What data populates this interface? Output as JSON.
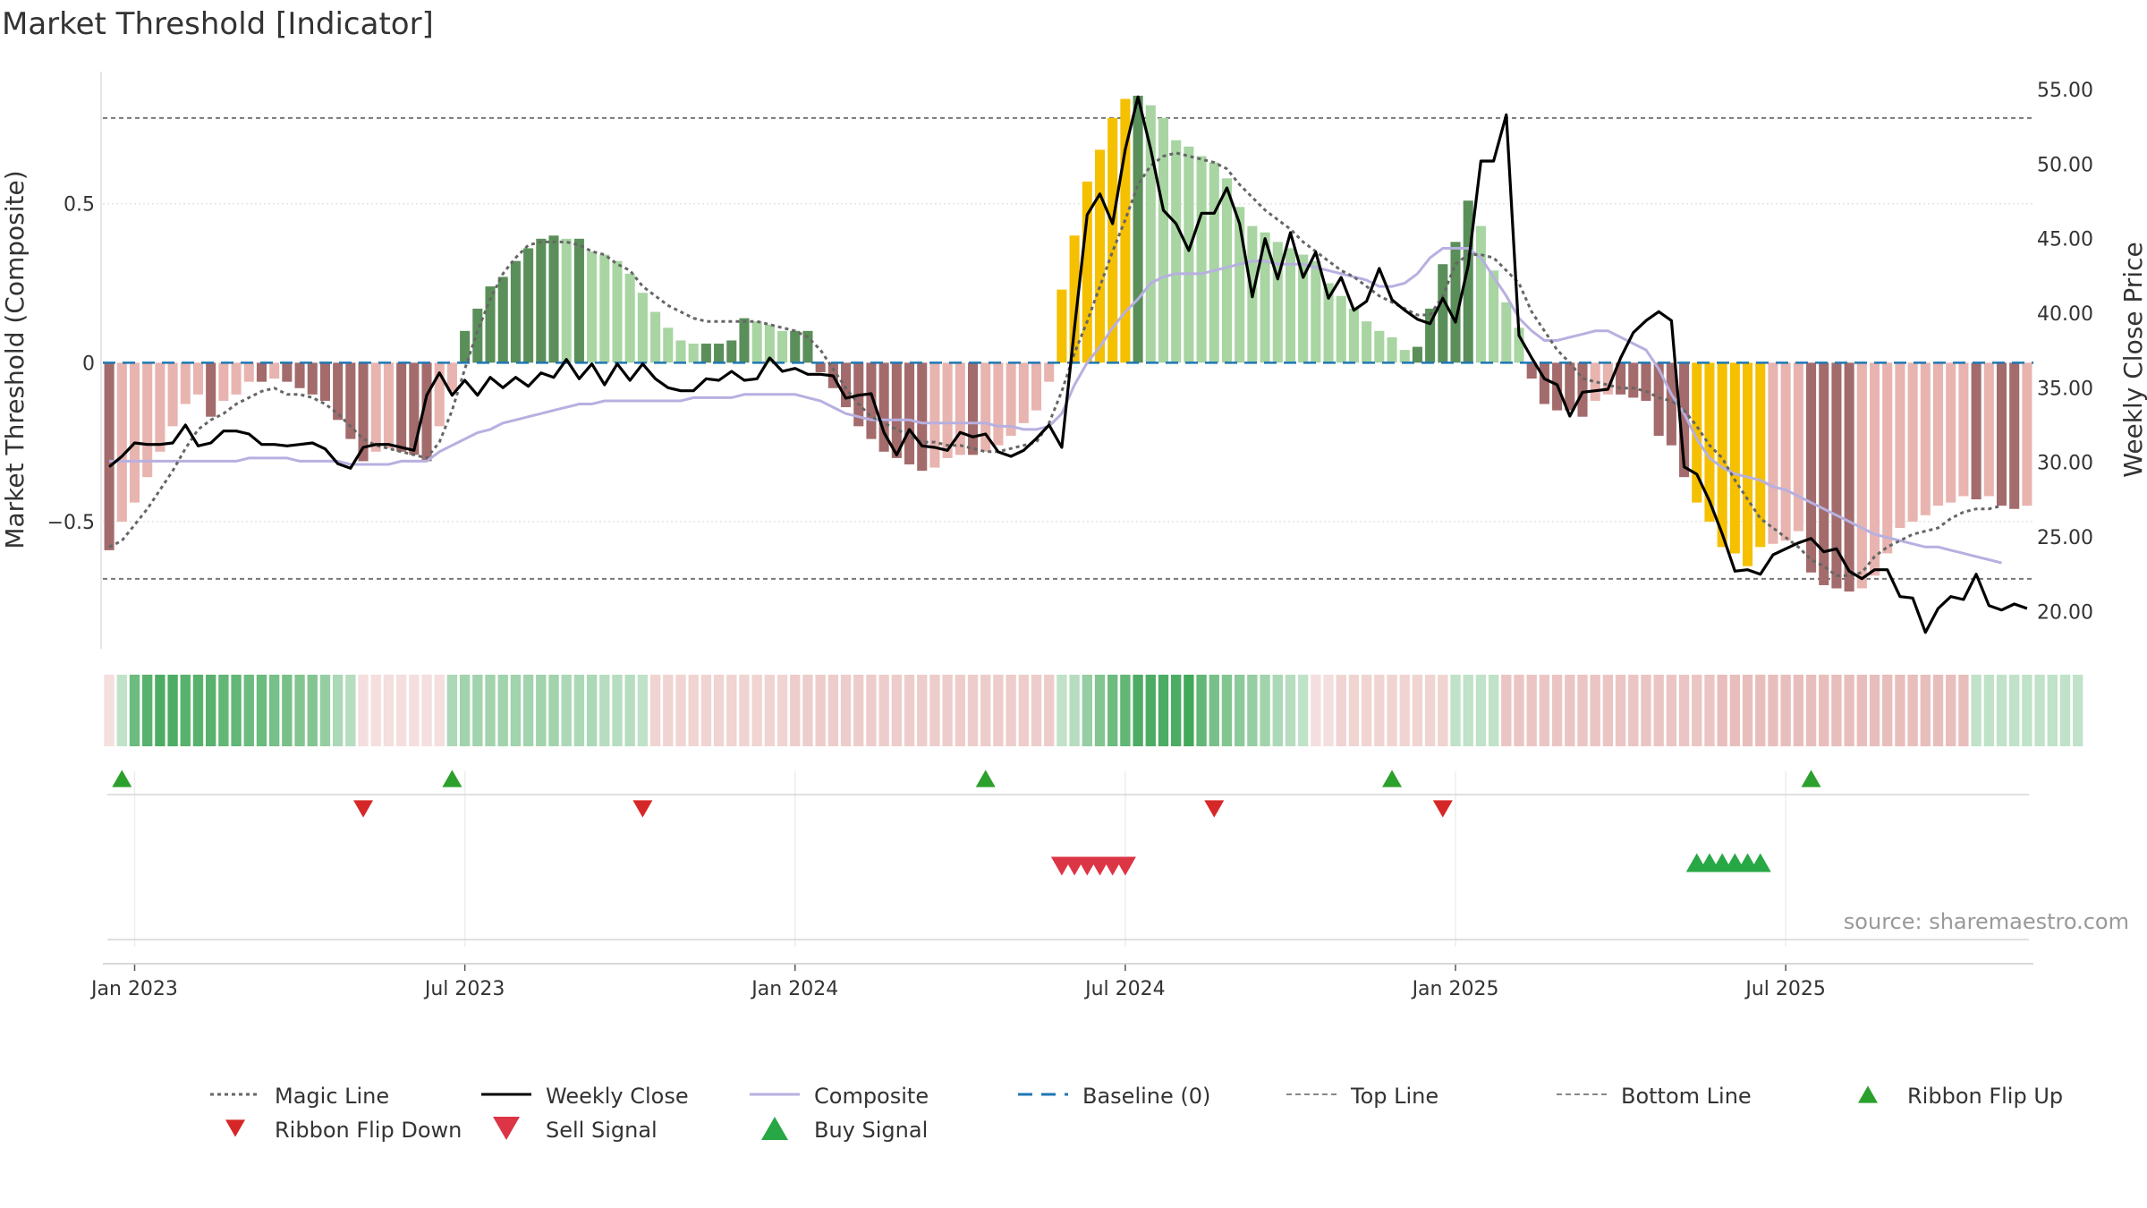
{
  "chart_data": {
    "type": "bar",
    "title": "Market Threshold [Indicator]",
    "ylabel_left": "Market Threshold (Composite)",
    "ylabel_right": "Weekly Close Price",
    "source": "source: sharemaestro.com",
    "left_ticks": [
      {
        "value": 0.5,
        "label": "0.5"
      },
      {
        "value": 0,
        "label": "0"
      },
      {
        "value": -0.5,
        "label": "−0.5"
      }
    ],
    "right_ticks": [
      {
        "value": 55,
        "label": "55.00"
      },
      {
        "value": 50,
        "label": "50.00"
      },
      {
        "value": 45,
        "label": "45.00"
      },
      {
        "value": 40,
        "label": "40.00"
      },
      {
        "value": 35,
        "label": "35.00"
      },
      {
        "value": 30,
        "label": "30.00"
      },
      {
        "value": 25,
        "label": "25.00"
      },
      {
        "value": 20,
        "label": "20.00"
      }
    ],
    "x_ticks": [
      {
        "week": 2,
        "label": "Jan 2023"
      },
      {
        "week": 28,
        "label": "Jul 2023"
      },
      {
        "week": 54,
        "label": "Jan 2024"
      },
      {
        "week": 80,
        "label": "Jul 2024"
      },
      {
        "week": 106,
        "label": "Jan 2025"
      },
      {
        "week": 132,
        "label": "Jul 2025"
      }
    ],
    "ylim_left": [
      -0.9,
      0.93
    ],
    "ylim_right": [
      17.5,
      56.5
    ],
    "top_line": 0.77,
    "bottom_line": -0.68,
    "composite_bars": [
      -0.59,
      -0.5,
      -0.44,
      -0.36,
      -0.28,
      -0.2,
      -0.13,
      -0.1,
      -0.17,
      -0.12,
      -0.1,
      -0.06,
      -0.06,
      -0.05,
      -0.06,
      -0.08,
      -0.1,
      -0.12,
      -0.18,
      -0.24,
      -0.31,
      -0.28,
      -0.27,
      -0.28,
      -0.29,
      -0.31,
      -0.2,
      -0.09,
      0.1,
      0.17,
      0.24,
      0.27,
      0.32,
      0.36,
      0.39,
      0.4,
      0.39,
      0.39,
      0.35,
      0.34,
      0.32,
      0.28,
      0.22,
      0.16,
      0.11,
      0.07,
      0.06,
      0.06,
      0.06,
      0.07,
      0.14,
      0.13,
      0.12,
      0.1,
      0.1,
      0.1,
      -0.03,
      -0.08,
      -0.14,
      -0.2,
      -0.24,
      -0.28,
      -0.3,
      -0.32,
      -0.34,
      -0.33,
      -0.3,
      -0.29,
      -0.29,
      -0.28,
      -0.26,
      -0.23,
      -0.19,
      -0.15,
      -0.06,
      0.23,
      0.4,
      0.57,
      0.67,
      0.77,
      0.83,
      0.84,
      0.81,
      0.77,
      0.7,
      0.68,
      0.65,
      0.63,
      0.58,
      0.49,
      0.43,
      0.41,
      0.38,
      0.36,
      0.34,
      0.32,
      0.25,
      0.21,
      0.17,
      0.13,
      0.1,
      0.08,
      0.04,
      0.05,
      0.17,
      0.31,
      0.38,
      0.51,
      0.43,
      0.29,
      0.19,
      0.11,
      -0.05,
      -0.13,
      -0.15,
      -0.15,
      -0.17,
      -0.12,
      -0.1,
      -0.1,
      -0.11,
      -0.12,
      -0.23,
      -0.26,
      -0.36,
      -0.44,
      -0.5,
      -0.58,
      -0.6,
      -0.64,
      -0.58,
      -0.57,
      -0.56,
      -0.53,
      -0.66,
      -0.7,
      -0.71,
      -0.72,
      -0.71,
      -0.67,
      -0.6,
      -0.52,
      -0.5,
      -0.48,
      -0.45,
      -0.44,
      -0.42,
      -0.43,
      -0.42,
      -0.45,
      -0.46,
      -0.45
    ],
    "weekly_close": [
      29.7,
      30.4,
      31.3,
      31.2,
      31.2,
      31.3,
      32.5,
      31.1,
      31.3,
      32.1,
      32.1,
      31.9,
      31.2,
      31.2,
      31.1,
      31.2,
      31.3,
      30.9,
      29.9,
      29.6,
      31.0,
      31.2,
      31.2,
      31.0,
      30.8,
      34.5,
      36.0,
      34.5,
      35.5,
      34.5,
      35.7,
      35.0,
      35.7,
      35.1,
      36.0,
      35.7,
      36.9,
      35.6,
      36.6,
      35.2,
      36.6,
      35.5,
      36.6,
      35.6,
      35.0,
      34.8,
      34.8,
      35.6,
      35.5,
      36.1,
      35.5,
      35.6,
      37.0,
      36.1,
      36.3,
      35.9,
      35.9,
      35.8,
      34.3,
      34.5,
      34.6,
      32.0,
      30.5,
      32.2,
      31.1,
      31.0,
      30.8,
      32.0,
      31.7,
      31.9,
      30.7,
      30.4,
      30.8,
      31.6,
      32.5,
      31.0,
      39.0,
      46.6,
      48.0,
      46.0,
      51.0,
      54.5,
      51.0,
      46.9,
      46.0,
      44.2,
      46.7,
      46.7,
      48.4,
      46.0,
      41.1,
      45.0,
      42.3,
      45.4,
      42.4,
      44.1,
      41.0,
      42.4,
      40.2,
      40.8,
      43.0,
      40.9,
      40.2,
      39.6,
      39.3,
      41.0,
      39.4,
      43.2,
      50.2,
      50.2,
      53.3,
      38.5,
      37.0,
      35.6,
      35.2,
      33.1,
      34.7,
      34.8,
      34.9,
      37.0,
      38.7,
      39.5,
      40.1,
      39.5,
      29.7,
      29.2,
      27.4,
      25.2,
      22.7,
      22.8,
      22.5,
      23.8,
      24.2,
      24.6,
      24.9,
      24.0,
      24.2,
      22.7,
      22.2,
      22.8,
      22.8,
      21.0,
      20.9,
      18.6,
      20.2,
      21.0,
      20.8,
      22.5,
      20.4,
      20.1,
      20.5,
      20.2
    ],
    "magic_line": [
      -0.58,
      -0.56,
      -0.51,
      -0.46,
      -0.4,
      -0.34,
      -0.27,
      -0.21,
      -0.18,
      -0.16,
      -0.13,
      -0.11,
      -0.09,
      -0.08,
      -0.1,
      -0.1,
      -0.11,
      -0.13,
      -0.16,
      -0.2,
      -0.24,
      -0.26,
      -0.27,
      -0.28,
      -0.29,
      -0.3,
      -0.25,
      -0.15,
      -0.02,
      0.1,
      0.2,
      0.28,
      0.33,
      0.37,
      0.38,
      0.38,
      0.38,
      0.37,
      0.35,
      0.34,
      0.31,
      0.29,
      0.24,
      0.21,
      0.18,
      0.16,
      0.14,
      0.13,
      0.13,
      0.13,
      0.13,
      0.13,
      0.12,
      0.11,
      0.1,
      0.08,
      0.04,
      -0.02,
      -0.08,
      -0.13,
      -0.17,
      -0.19,
      -0.21,
      -0.23,
      -0.25,
      -0.25,
      -0.26,
      -0.26,
      -0.27,
      -0.28,
      -0.28,
      -0.27,
      -0.26,
      -0.25,
      -0.19,
      -0.09,
      0.03,
      0.13,
      0.24,
      0.35,
      0.45,
      0.56,
      0.62,
      0.65,
      0.66,
      0.65,
      0.64,
      0.63,
      0.61,
      0.56,
      0.52,
      0.48,
      0.45,
      0.42,
      0.38,
      0.35,
      0.32,
      0.29,
      0.27,
      0.24,
      0.21,
      0.19,
      0.17,
      0.15,
      0.15,
      0.21,
      0.31,
      0.34,
      0.34,
      0.33,
      0.29,
      0.25,
      0.16,
      0.1,
      0.04,
      0.0,
      -0.05,
      -0.06,
      -0.07,
      -0.08,
      -0.08,
      -0.09,
      -0.11,
      -0.12,
      -0.15,
      -0.2,
      -0.26,
      -0.3,
      -0.37,
      -0.43,
      -0.49,
      -0.52,
      -0.55,
      -0.58,
      -0.62,
      -0.64,
      -0.67,
      -0.67,
      -0.66,
      -0.61,
      -0.58,
      -0.56,
      -0.54,
      -0.53,
      -0.52,
      -0.49,
      -0.47,
      -0.46,
      -0.46,
      -0.45
    ],
    "composite_line": [
      -0.31,
      -0.31,
      -0.31,
      -0.31,
      -0.31,
      -0.31,
      -0.31,
      -0.31,
      -0.31,
      -0.31,
      -0.31,
      -0.3,
      -0.3,
      -0.3,
      -0.3,
      -0.31,
      -0.31,
      -0.31,
      -0.31,
      -0.32,
      -0.32,
      -0.32,
      -0.32,
      -0.31,
      -0.31,
      -0.31,
      -0.28,
      -0.26,
      -0.24,
      -0.22,
      -0.21,
      -0.19,
      -0.18,
      -0.17,
      -0.16,
      -0.15,
      -0.14,
      -0.13,
      -0.13,
      -0.12,
      -0.12,
      -0.12,
      -0.12,
      -0.12,
      -0.12,
      -0.12,
      -0.11,
      -0.11,
      -0.11,
      -0.11,
      -0.1,
      -0.1,
      -0.1,
      -0.1,
      -0.1,
      -0.11,
      -0.12,
      -0.14,
      -0.16,
      -0.17,
      -0.18,
      -0.18,
      -0.18,
      -0.18,
      -0.19,
      -0.19,
      -0.19,
      -0.19,
      -0.19,
      -0.19,
      -0.2,
      -0.2,
      -0.21,
      -0.21,
      -0.2,
      -0.16,
      -0.07,
      0.0,
      0.05,
      0.11,
      0.16,
      0.2,
      0.25,
      0.27,
      0.28,
      0.28,
      0.28,
      0.29,
      0.3,
      0.31,
      0.32,
      0.32,
      0.31,
      0.31,
      0.31,
      0.3,
      0.29,
      0.28,
      0.27,
      0.26,
      0.24,
      0.24,
      0.25,
      0.28,
      0.33,
      0.36,
      0.36,
      0.36,
      0.33,
      0.27,
      0.21,
      0.14,
      0.1,
      0.07,
      0.07,
      0.08,
      0.09,
      0.1,
      0.1,
      0.08,
      0.06,
      0.04,
      -0.02,
      -0.1,
      -0.16,
      -0.24,
      -0.3,
      -0.33,
      -0.35,
      -0.36,
      -0.37,
      -0.39,
      -0.4,
      -0.42,
      -0.44,
      -0.46,
      -0.48,
      -0.5,
      -0.52,
      -0.54,
      -0.55,
      -0.56,
      -0.57,
      -0.58,
      -0.58,
      -0.59,
      -0.6,
      -0.61,
      -0.62,
      -0.63
    ],
    "ribbon_intensity": [
      -0.2,
      0.3,
      0.7,
      0.8,
      0.85,
      0.85,
      0.8,
      0.8,
      0.8,
      0.75,
      0.75,
      0.7,
      0.7,
      0.65,
      0.65,
      0.6,
      0.6,
      0.5,
      0.4,
      0.35,
      -0.2,
      -0.2,
      -0.2,
      -0.2,
      -0.2,
      -0.2,
      -0.2,
      0.4,
      0.45,
      0.45,
      0.45,
      0.45,
      0.45,
      0.45,
      0.45,
      0.45,
      0.4,
      0.4,
      0.4,
      0.35,
      0.35,
      0.35,
      0.3,
      -0.3,
      -0.3,
      -0.3,
      -0.3,
      -0.3,
      -0.3,
      -0.3,
      -0.3,
      -0.3,
      -0.3,
      -0.3,
      -0.35,
      -0.35,
      -0.35,
      -0.35,
      -0.35,
      -0.35,
      -0.35,
      -0.35,
      -0.35,
      -0.35,
      -0.35,
      -0.35,
      -0.35,
      -0.35,
      -0.35,
      -0.35,
      -0.35,
      -0.35,
      -0.35,
      -0.35,
      -0.35,
      0.3,
      0.35,
      0.5,
      0.6,
      0.7,
      0.75,
      0.85,
      0.85,
      0.85,
      0.85,
      0.9,
      0.75,
      0.65,
      0.6,
      0.55,
      0.5,
      0.45,
      0.4,
      0.35,
      0.3,
      -0.2,
      -0.2,
      -0.3,
      -0.3,
      -0.3,
      -0.3,
      -0.3,
      -0.3,
      -0.3,
      -0.3,
      -0.3,
      0.3,
      0.3,
      0.3,
      0.3,
      -0.4,
      -0.4,
      -0.4,
      -0.4,
      -0.4,
      -0.4,
      -0.4,
      -0.4,
      -0.4,
      -0.4,
      -0.4,
      -0.4,
      -0.4,
      -0.4,
      -0.4,
      -0.4,
      -0.4,
      -0.45,
      -0.45,
      -0.45,
      -0.45,
      -0.45,
      -0.45,
      -0.45,
      -0.45,
      -0.45,
      -0.45,
      -0.45,
      -0.45,
      -0.45,
      -0.45,
      -0.45,
      -0.45,
      -0.45,
      -0.45,
      -0.45,
      -0.45,
      0.3,
      0.3,
      0.3,
      0.3,
      0.3,
      0.3,
      0.3,
      0.3,
      0.3
    ],
    "ribbon_flip_up_weeks": [
      1,
      27,
      69,
      101,
      134
    ],
    "ribbon_flip_down_weeks": [
      20,
      42,
      87,
      105
    ],
    "sell_signal_weeks": [
      75,
      76,
      77,
      78,
      79,
      80
    ],
    "buy_signal_weeks": [
      125,
      126,
      127,
      128,
      129,
      130
    ],
    "strong_negative_weeks": [
      125,
      126,
      127,
      128,
      129,
      130
    ],
    "strong_positive_weeks": [
      75,
      76,
      77,
      78,
      79,
      80
    ],
    "legend": [
      {
        "label": "Magic Line",
        "kind": "dotted",
        "color": "#666666"
      },
      {
        "label": "Weekly Close",
        "kind": "solid",
        "color": "#000000"
      },
      {
        "label": "Composite",
        "kind": "solid",
        "color": "#b7b0e0"
      },
      {
        "label": "Baseline (0)",
        "kind": "dashed",
        "color": "#1f77b4"
      },
      {
        "label": "Top Line",
        "kind": "finedash",
        "color": "#888888"
      },
      {
        "label": "Bottom Line",
        "kind": "finedash",
        "color": "#888888"
      },
      {
        "label": "Ribbon Flip Up",
        "kind": "tri-up",
        "color": "#2ca02c"
      },
      {
        "label": "Ribbon Flip Down",
        "kind": "tri-down",
        "color": "#d62728"
      },
      {
        "label": "Sell Signal",
        "kind": "tri-down-big",
        "color": "#dc3545"
      },
      {
        "label": "Buy Signal",
        "kind": "tri-up-big",
        "color": "#28a745"
      }
    ],
    "colors": {
      "pos_strong": "#5a8f5a",
      "pos_light": "#a8d5a2",
      "neg_strong": "#a36b6b",
      "neg_light": "#e8b4b0",
      "extreme": "#f5c000",
      "weekly_close": "#000000",
      "composite": "#b7b0e0",
      "magic": "#666666",
      "baseline": "#1f77b4",
      "ribbon_pos": "#2e9e48",
      "ribbon_neg": "#cc6f6a",
      "flip_up": "#2ca02c",
      "flip_down": "#d62728",
      "sell": "#dc3545",
      "buy": "#28a745"
    }
  }
}
